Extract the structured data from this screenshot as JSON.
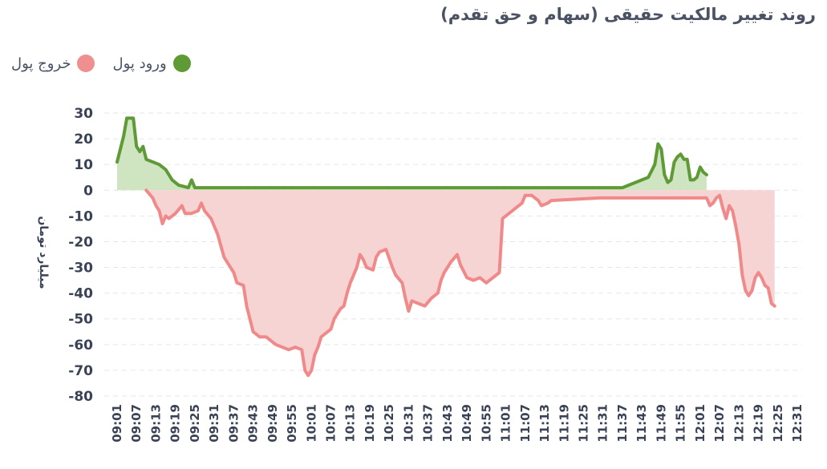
{
  "chart_data": {
    "type": "area",
    "title": "روند تغییر مالکیت حقیقی (سهام و حق تقدم)",
    "ylabel": "میلیارد تومان",
    "xlabel": "",
    "ylim": [
      -80,
      30
    ],
    "yticks": [
      30,
      20,
      10,
      0,
      -10,
      -20,
      -30,
      -40,
      -50,
      -60,
      -70,
      -80
    ],
    "grid": "horizontal dashed",
    "legend_placement": "top-left",
    "x_ticks": [
      "09:01",
      "09:07",
      "09:13",
      "09:19",
      "09:25",
      "09:31",
      "09:37",
      "09:43",
      "09:49",
      "09:55",
      "10:01",
      "10:07",
      "10:13",
      "10:19",
      "10:25",
      "10:31",
      "10:37",
      "10:43",
      "10:49",
      "10:55",
      "11:01",
      "11:07",
      "11:13",
      "11:19",
      "11:25",
      "11:31",
      "11:37",
      "11:43",
      "11:49",
      "11:55",
      "12:01",
      "12:07",
      "12:13",
      "12:19",
      "12:25",
      "12:31"
    ],
    "series": [
      {
        "name": "ورود پول",
        "color": "#5e9a35",
        "fill": "#cfe4c0",
        "points": [
          [
            "09:01",
            11
          ],
          [
            "09:03",
            21
          ],
          [
            "09:04",
            28
          ],
          [
            "09:06",
            28
          ],
          [
            "09:07",
            17
          ],
          [
            "09:08",
            15
          ],
          [
            "09:09",
            17
          ],
          [
            "09:10",
            12
          ],
          [
            "09:12",
            11
          ],
          [
            "09:14",
            10
          ],
          [
            "09:16",
            8
          ],
          [
            "09:18",
            4
          ],
          [
            "09:20",
            2
          ],
          [
            "09:23",
            1
          ],
          [
            "09:24",
            4
          ],
          [
            "09:25",
            1
          ],
          [
            "10:00",
            1
          ],
          [
            "11:00",
            1
          ],
          [
            "11:37",
            1
          ],
          [
            "11:39",
            2
          ],
          [
            "11:41",
            3
          ],
          [
            "11:43",
            4
          ],
          [
            "11:45",
            5
          ],
          [
            "11:47",
            10
          ],
          [
            "11:48",
            18
          ],
          [
            "11:49",
            16
          ],
          [
            "11:50",
            6
          ],
          [
            "11:51",
            3
          ],
          [
            "11:52",
            4
          ],
          [
            "11:53",
            11
          ],
          [
            "11:54",
            13
          ],
          [
            "11:55",
            14
          ],
          [
            "11:56",
            12
          ],
          [
            "11:57",
            12
          ],
          [
            "11:58",
            4
          ],
          [
            "11:59",
            4
          ],
          [
            "12:00",
            5
          ],
          [
            "12:01",
            9
          ],
          [
            "12:02",
            7
          ],
          [
            "12:03",
            6
          ]
        ]
      },
      {
        "name": "خروج پول",
        "color": "#f08a8a",
        "fill": "#f7d4d4",
        "points": [
          [
            "09:10",
            0
          ],
          [
            "09:12",
            -3
          ],
          [
            "09:13",
            -6
          ],
          [
            "09:14",
            -8
          ],
          [
            "09:15",
            -13
          ],
          [
            "09:16",
            -10
          ],
          [
            "09:17",
            -11
          ],
          [
            "09:19",
            -9
          ],
          [
            "09:21",
            -6
          ],
          [
            "09:22",
            -9
          ],
          [
            "09:24",
            -9
          ],
          [
            "09:26",
            -8
          ],
          [
            "09:27",
            -5
          ],
          [
            "09:28",
            -8
          ],
          [
            "09:30",
            -11
          ],
          [
            "09:32",
            -17
          ],
          [
            "09:34",
            -26
          ],
          [
            "09:36",
            -30
          ],
          [
            "09:37",
            -32
          ],
          [
            "09:38",
            -36
          ],
          [
            "09:40",
            -37
          ],
          [
            "09:41",
            -45
          ],
          [
            "09:43",
            -55
          ],
          [
            "09:45",
            -57
          ],
          [
            "09:47",
            -57
          ],
          [
            "09:48",
            -58
          ],
          [
            "09:50",
            -60
          ],
          [
            "09:52",
            -61
          ],
          [
            "09:54",
            -62
          ],
          [
            "09:56",
            -61
          ],
          [
            "09:58",
            -62
          ],
          [
            "09:59",
            -70
          ],
          [
            "10:00",
            -72
          ],
          [
            "10:01",
            -70
          ],
          [
            "10:02",
            -64
          ],
          [
            "10:03",
            -61
          ],
          [
            "10:04",
            -57
          ],
          [
            "10:05",
            -56
          ],
          [
            "10:06",
            -55
          ],
          [
            "10:07",
            -54
          ],
          [
            "10:08",
            -50
          ],
          [
            "10:10",
            -46
          ],
          [
            "10:11",
            -45
          ],
          [
            "10:12",
            -40
          ],
          [
            "10:13",
            -36
          ],
          [
            "10:14",
            -33
          ],
          [
            "10:15",
            -30
          ],
          [
            "10:16",
            -25
          ],
          [
            "10:17",
            -27
          ],
          [
            "10:18",
            -30
          ],
          [
            "10:20",
            -31
          ],
          [
            "10:21",
            -26
          ],
          [
            "10:22",
            -24
          ],
          [
            "10:24",
            -23
          ],
          [
            "10:26",
            -30
          ],
          [
            "10:27",
            -33
          ],
          [
            "10:29",
            -36
          ],
          [
            "10:30",
            -42
          ],
          [
            "10:31",
            -47
          ],
          [
            "10:32",
            -43
          ],
          [
            "10:34",
            -44
          ],
          [
            "10:36",
            -45
          ],
          [
            "10:38",
            -42
          ],
          [
            "10:40",
            -40
          ],
          [
            "10:41",
            -35
          ],
          [
            "10:42",
            -32
          ],
          [
            "10:44",
            -28
          ],
          [
            "10:46",
            -25
          ],
          [
            "10:47",
            -29
          ],
          [
            "10:49",
            -34
          ],
          [
            "10:51",
            -35
          ],
          [
            "10:53",
            -34
          ],
          [
            "10:55",
            -36
          ],
          [
            "10:57",
            -34
          ],
          [
            "10:59",
            -32
          ],
          [
            "11:00",
            -11
          ],
          [
            "11:02",
            -9
          ],
          [
            "11:04",
            -7
          ],
          [
            "11:06",
            -5
          ],
          [
            "11:07",
            -2
          ],
          [
            "11:09",
            -2
          ],
          [
            "11:10",
            -3
          ],
          [
            "11:11",
            -4
          ],
          [
            "11:12",
            -6
          ],
          [
            "11:14",
            -5
          ],
          [
            "11:15",
            -4
          ],
          [
            "11:30",
            -3
          ],
          [
            "12:00",
            -3
          ],
          [
            "12:03",
            -3
          ],
          [
            "12:04",
            -6
          ],
          [
            "12:05",
            -5
          ],
          [
            "12:06",
            -3
          ],
          [
            "12:07",
            -2
          ],
          [
            "12:08",
            -7
          ],
          [
            "12:09",
            -11
          ],
          [
            "12:10",
            -6
          ],
          [
            "12:11",
            -8
          ],
          [
            "12:12",
            -14
          ],
          [
            "12:13",
            -21
          ],
          [
            "12:14",
            -33
          ],
          [
            "12:15",
            -39
          ],
          [
            "12:16",
            -41
          ],
          [
            "12:17",
            -39
          ],
          [
            "12:18",
            -34
          ],
          [
            "12:19",
            -32
          ],
          [
            "12:20",
            -34
          ],
          [
            "12:21",
            -37
          ],
          [
            "12:22",
            -38
          ],
          [
            "12:23",
            -44
          ],
          [
            "12:24",
            -45
          ]
        ]
      }
    ]
  }
}
